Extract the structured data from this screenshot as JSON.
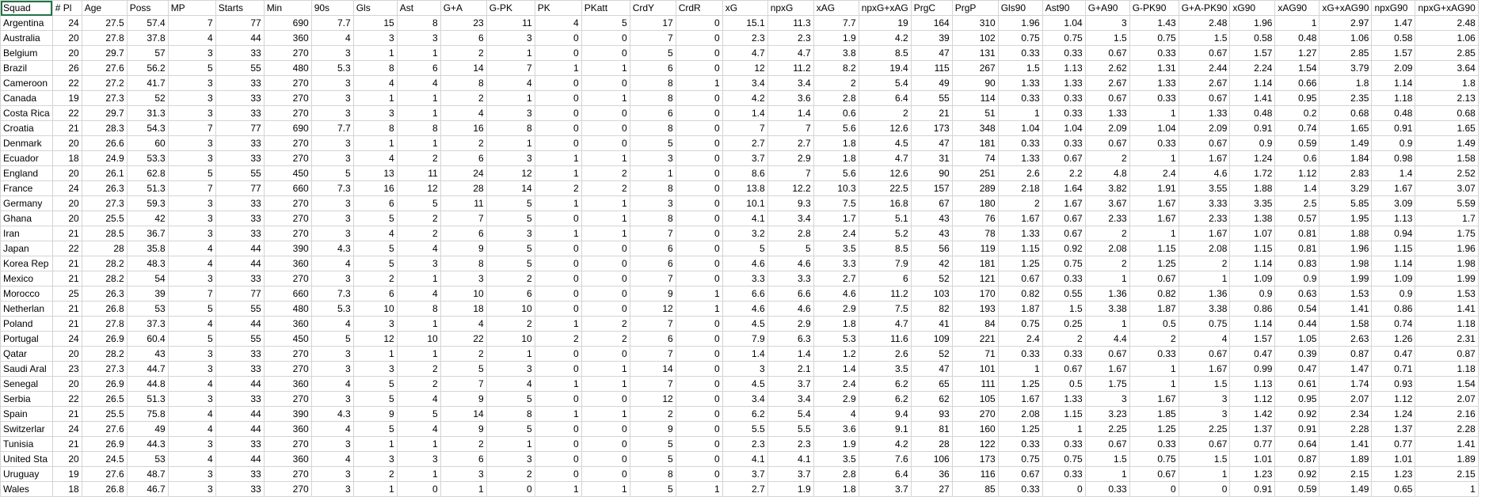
{
  "sheet": {
    "headers": [
      "Squad",
      "# Pl",
      "Age",
      "Poss",
      "MP",
      "Starts",
      "Min",
      "90s",
      "Gls",
      "Ast",
      "G+A",
      "G-PK",
      "PK",
      "PKatt",
      "CrdY",
      "CrdR",
      "xG",
      "npxG",
      "xAG",
      "npxG+xAG",
      "PrgC",
      "PrgP",
      "Gls90",
      "Ast90",
      "G+A90",
      "G-PK90",
      "G+A-PK90",
      "xG90",
      "xAG90",
      "xG+xAG90",
      "npxG90",
      "npxG+xAG90"
    ],
    "rows": [
      [
        "Argentina",
        "24",
        "27.5",
        "57.4",
        "7",
        "77",
        "690",
        "7.7",
        "15",
        "8",
        "23",
        "11",
        "4",
        "5",
        "17",
        "0",
        "15.1",
        "11.3",
        "7.7",
        "19",
        "164",
        "310",
        "1.96",
        "1.04",
        "3",
        "1.43",
        "2.48",
        "1.96",
        "1",
        "2.97",
        "1.47",
        "2.48"
      ],
      [
        "Australia",
        "20",
        "27.8",
        "37.8",
        "4",
        "44",
        "360",
        "4",
        "3",
        "3",
        "6",
        "3",
        "0",
        "0",
        "7",
        "0",
        "2.3",
        "2.3",
        "1.9",
        "4.2",
        "39",
        "102",
        "0.75",
        "0.75",
        "1.5",
        "0.75",
        "1.5",
        "0.58",
        "0.48",
        "1.06",
        "0.58",
        "1.06"
      ],
      [
        "Belgium",
        "20",
        "29.7",
        "57",
        "3",
        "33",
        "270",
        "3",
        "1",
        "1",
        "2",
        "1",
        "0",
        "0",
        "5",
        "0",
        "4.7",
        "4.7",
        "3.8",
        "8.5",
        "47",
        "131",
        "0.33",
        "0.33",
        "0.67",
        "0.33",
        "0.67",
        "1.57",
        "1.27",
        "2.85",
        "1.57",
        "2.85"
      ],
      [
        "Brazil",
        "26",
        "27.6",
        "56.2",
        "5",
        "55",
        "480",
        "5.3",
        "8",
        "6",
        "14",
        "7",
        "1",
        "1",
        "6",
        "0",
        "12",
        "11.2",
        "8.2",
        "19.4",
        "115",
        "267",
        "1.5",
        "1.13",
        "2.62",
        "1.31",
        "2.44",
        "2.24",
        "1.54",
        "3.79",
        "2.09",
        "3.64"
      ],
      [
        "Cameroon",
        "22",
        "27.2",
        "41.7",
        "3",
        "33",
        "270",
        "3",
        "4",
        "4",
        "8",
        "4",
        "0",
        "0",
        "8",
        "1",
        "3.4",
        "3.4",
        "2",
        "5.4",
        "49",
        "90",
        "1.33",
        "1.33",
        "2.67",
        "1.33",
        "2.67",
        "1.14",
        "0.66",
        "1.8",
        "1.14",
        "1.8"
      ],
      [
        "Canada",
        "19",
        "27.3",
        "52",
        "3",
        "33",
        "270",
        "3",
        "1",
        "1",
        "2",
        "1",
        "0",
        "1",
        "8",
        "0",
        "4.2",
        "3.6",
        "2.8",
        "6.4",
        "55",
        "114",
        "0.33",
        "0.33",
        "0.67",
        "0.33",
        "0.67",
        "1.41",
        "0.95",
        "2.35",
        "1.18",
        "2.13"
      ],
      [
        "Costa Rica",
        "22",
        "29.7",
        "31.3",
        "3",
        "33",
        "270",
        "3",
        "3",
        "1",
        "4",
        "3",
        "0",
        "0",
        "6",
        "0",
        "1.4",
        "1.4",
        "0.6",
        "2",
        "21",
        "51",
        "1",
        "0.33",
        "1.33",
        "1",
        "1.33",
        "0.48",
        "0.2",
        "0.68",
        "0.48",
        "0.68"
      ],
      [
        "Croatia",
        "21",
        "28.3",
        "54.3",
        "7",
        "77",
        "690",
        "7.7",
        "8",
        "8",
        "16",
        "8",
        "0",
        "0",
        "8",
        "0",
        "7",
        "7",
        "5.6",
        "12.6",
        "173",
        "348",
        "1.04",
        "1.04",
        "2.09",
        "1.04",
        "2.09",
        "0.91",
        "0.74",
        "1.65",
        "0.91",
        "1.65"
      ],
      [
        "Denmark",
        "20",
        "26.6",
        "60",
        "3",
        "33",
        "270",
        "3",
        "1",
        "1",
        "2",
        "1",
        "0",
        "0",
        "5",
        "0",
        "2.7",
        "2.7",
        "1.8",
        "4.5",
        "47",
        "181",
        "0.33",
        "0.33",
        "0.67",
        "0.33",
        "0.67",
        "0.9",
        "0.59",
        "1.49",
        "0.9",
        "1.49"
      ],
      [
        "Ecuador",
        "18",
        "24.9",
        "53.3",
        "3",
        "33",
        "270",
        "3",
        "4",
        "2",
        "6",
        "3",
        "1",
        "1",
        "3",
        "0",
        "3.7",
        "2.9",
        "1.8",
        "4.7",
        "31",
        "74",
        "1.33",
        "0.67",
        "2",
        "1",
        "1.67",
        "1.24",
        "0.6",
        "1.84",
        "0.98",
        "1.58"
      ],
      [
        "England",
        "20",
        "26.1",
        "62.8",
        "5",
        "55",
        "450",
        "5",
        "13",
        "11",
        "24",
        "12",
        "1",
        "2",
        "1",
        "0",
        "8.6",
        "7",
        "5.6",
        "12.6",
        "90",
        "251",
        "2.6",
        "2.2",
        "4.8",
        "2.4",
        "4.6",
        "1.72",
        "1.12",
        "2.83",
        "1.4",
        "2.52"
      ],
      [
        "France",
        "24",
        "26.3",
        "51.3",
        "7",
        "77",
        "660",
        "7.3",
        "16",
        "12",
        "28",
        "14",
        "2",
        "2",
        "8",
        "0",
        "13.8",
        "12.2",
        "10.3",
        "22.5",
        "157",
        "289",
        "2.18",
        "1.64",
        "3.82",
        "1.91",
        "3.55",
        "1.88",
        "1.4",
        "3.29",
        "1.67",
        "3.07"
      ],
      [
        "Germany",
        "20",
        "27.3",
        "59.3",
        "3",
        "33",
        "270",
        "3",
        "6",
        "5",
        "11",
        "5",
        "1",
        "1",
        "3",
        "0",
        "10.1",
        "9.3",
        "7.5",
        "16.8",
        "67",
        "180",
        "2",
        "1.67",
        "3.67",
        "1.67",
        "3.33",
        "3.35",
        "2.5",
        "5.85",
        "3.09",
        "5.59"
      ],
      [
        "Ghana",
        "20",
        "25.5",
        "42",
        "3",
        "33",
        "270",
        "3",
        "5",
        "2",
        "7",
        "5",
        "0",
        "1",
        "8",
        "0",
        "4.1",
        "3.4",
        "1.7",
        "5.1",
        "43",
        "76",
        "1.67",
        "0.67",
        "2.33",
        "1.67",
        "2.33",
        "1.38",
        "0.57",
        "1.95",
        "1.13",
        "1.7"
      ],
      [
        "Iran",
        "21",
        "28.5",
        "36.7",
        "3",
        "33",
        "270",
        "3",
        "4",
        "2",
        "6",
        "3",
        "1",
        "1",
        "7",
        "0",
        "3.2",
        "2.8",
        "2.4",
        "5.2",
        "43",
        "78",
        "1.33",
        "0.67",
        "2",
        "1",
        "1.67",
        "1.07",
        "0.81",
        "1.88",
        "0.94",
        "1.75"
      ],
      [
        "Japan",
        "22",
        "28",
        "35.8",
        "4",
        "44",
        "390",
        "4.3",
        "5",
        "4",
        "9",
        "5",
        "0",
        "0",
        "6",
        "0",
        "5",
        "5",
        "3.5",
        "8.5",
        "56",
        "119",
        "1.15",
        "0.92",
        "2.08",
        "1.15",
        "2.08",
        "1.15",
        "0.81",
        "1.96",
        "1.15",
        "1.96"
      ],
      [
        "Korea Rep",
        "21",
        "28.2",
        "48.3",
        "4",
        "44",
        "360",
        "4",
        "5",
        "3",
        "8",
        "5",
        "0",
        "0",
        "6",
        "0",
        "4.6",
        "4.6",
        "3.3",
        "7.9",
        "42",
        "181",
        "1.25",
        "0.75",
        "2",
        "1.25",
        "2",
        "1.14",
        "0.83",
        "1.98",
        "1.14",
        "1.98"
      ],
      [
        "Mexico",
        "21",
        "28.2",
        "54",
        "3",
        "33",
        "270",
        "3",
        "2",
        "1",
        "3",
        "2",
        "0",
        "0",
        "7",
        "0",
        "3.3",
        "3.3",
        "2.7",
        "6",
        "52",
        "121",
        "0.67",
        "0.33",
        "1",
        "0.67",
        "1",
        "1.09",
        "0.9",
        "1.99",
        "1.09",
        "1.99"
      ],
      [
        "Morocco",
        "25",
        "26.3",
        "39",
        "7",
        "77",
        "660",
        "7.3",
        "6",
        "4",
        "10",
        "6",
        "0",
        "0",
        "9",
        "1",
        "6.6",
        "6.6",
        "4.6",
        "11.2",
        "103",
        "170",
        "0.82",
        "0.55",
        "1.36",
        "0.82",
        "1.36",
        "0.9",
        "0.63",
        "1.53",
        "0.9",
        "1.53"
      ],
      [
        "Netherlan",
        "21",
        "26.8",
        "53",
        "5",
        "55",
        "480",
        "5.3",
        "10",
        "8",
        "18",
        "10",
        "0",
        "0",
        "12",
        "1",
        "4.6",
        "4.6",
        "2.9",
        "7.5",
        "82",
        "193",
        "1.87",
        "1.5",
        "3.38",
        "1.87",
        "3.38",
        "0.86",
        "0.54",
        "1.41",
        "0.86",
        "1.41"
      ],
      [
        "Poland",
        "21",
        "27.8",
        "37.3",
        "4",
        "44",
        "360",
        "4",
        "3",
        "1",
        "4",
        "2",
        "1",
        "2",
        "7",
        "0",
        "4.5",
        "2.9",
        "1.8",
        "4.7",
        "41",
        "84",
        "0.75",
        "0.25",
        "1",
        "0.5",
        "0.75",
        "1.14",
        "0.44",
        "1.58",
        "0.74",
        "1.18"
      ],
      [
        "Portugal",
        "24",
        "26.9",
        "60.4",
        "5",
        "55",
        "450",
        "5",
        "12",
        "10",
        "22",
        "10",
        "2",
        "2",
        "6",
        "0",
        "7.9",
        "6.3",
        "5.3",
        "11.6",
        "109",
        "221",
        "2.4",
        "2",
        "4.4",
        "2",
        "4",
        "1.57",
        "1.05",
        "2.63",
        "1.26",
        "2.31"
      ],
      [
        "Qatar",
        "20",
        "28.2",
        "43",
        "3",
        "33",
        "270",
        "3",
        "1",
        "1",
        "2",
        "1",
        "0",
        "0",
        "7",
        "0",
        "1.4",
        "1.4",
        "1.2",
        "2.6",
        "52",
        "71",
        "0.33",
        "0.33",
        "0.67",
        "0.33",
        "0.67",
        "0.47",
        "0.39",
        "0.87",
        "0.47",
        "0.87"
      ],
      [
        "Saudi Aral",
        "23",
        "27.3",
        "44.7",
        "3",
        "33",
        "270",
        "3",
        "3",
        "2",
        "5",
        "3",
        "0",
        "1",
        "14",
        "0",
        "3",
        "2.1",
        "1.4",
        "3.5",
        "47",
        "101",
        "1",
        "0.67",
        "1.67",
        "1",
        "1.67",
        "0.99",
        "0.47",
        "1.47",
        "0.71",
        "1.18"
      ],
      [
        "Senegal",
        "20",
        "26.9",
        "44.8",
        "4",
        "44",
        "360",
        "4",
        "5",
        "2",
        "7",
        "4",
        "1",
        "1",
        "7",
        "0",
        "4.5",
        "3.7",
        "2.4",
        "6.2",
        "65",
        "111",
        "1.25",
        "0.5",
        "1.75",
        "1",
        "1.5",
        "1.13",
        "0.61",
        "1.74",
        "0.93",
        "1.54"
      ],
      [
        "Serbia",
        "22",
        "26.5",
        "51.3",
        "3",
        "33",
        "270",
        "3",
        "5",
        "4",
        "9",
        "5",
        "0",
        "0",
        "12",
        "0",
        "3.4",
        "3.4",
        "2.9",
        "6.2",
        "62",
        "105",
        "1.67",
        "1.33",
        "3",
        "1.67",
        "3",
        "1.12",
        "0.95",
        "2.07",
        "1.12",
        "2.07"
      ],
      [
        "Spain",
        "21",
        "25.5",
        "75.8",
        "4",
        "44",
        "390",
        "4.3",
        "9",
        "5",
        "14",
        "8",
        "1",
        "1",
        "2",
        "0",
        "6.2",
        "5.4",
        "4",
        "9.4",
        "93",
        "270",
        "2.08",
        "1.15",
        "3.23",
        "1.85",
        "3",
        "1.42",
        "0.92",
        "2.34",
        "1.24",
        "2.16"
      ],
      [
        "Switzerlar",
        "24",
        "27.6",
        "49",
        "4",
        "44",
        "360",
        "4",
        "5",
        "4",
        "9",
        "5",
        "0",
        "0",
        "9",
        "0",
        "5.5",
        "5.5",
        "3.6",
        "9.1",
        "81",
        "160",
        "1.25",
        "1",
        "2.25",
        "1.25",
        "2.25",
        "1.37",
        "0.91",
        "2.28",
        "1.37",
        "2.28"
      ],
      [
        "Tunisia",
        "21",
        "26.9",
        "44.3",
        "3",
        "33",
        "270",
        "3",
        "1",
        "1",
        "2",
        "1",
        "0",
        "0",
        "5",
        "0",
        "2.3",
        "2.3",
        "1.9",
        "4.2",
        "28",
        "122",
        "0.33",
        "0.33",
        "0.67",
        "0.33",
        "0.67",
        "0.77",
        "0.64",
        "1.41",
        "0.77",
        "1.41"
      ],
      [
        "United Sta",
        "20",
        "24.5",
        "53",
        "4",
        "44",
        "360",
        "4",
        "3",
        "3",
        "6",
        "3",
        "0",
        "0",
        "5",
        "0",
        "4.1",
        "4.1",
        "3.5",
        "7.6",
        "106",
        "173",
        "0.75",
        "0.75",
        "1.5",
        "0.75",
        "1.5",
        "1.01",
        "0.87",
        "1.89",
        "1.01",
        "1.89"
      ],
      [
        "Uruguay",
        "19",
        "27.6",
        "48.7",
        "3",
        "33",
        "270",
        "3",
        "2",
        "1",
        "3",
        "2",
        "0",
        "0",
        "8",
        "0",
        "3.7",
        "3.7",
        "2.8",
        "6.4",
        "36",
        "116",
        "0.67",
        "0.33",
        "1",
        "0.67",
        "1",
        "1.23",
        "0.92",
        "2.15",
        "1.23",
        "2.15"
      ],
      [
        "Wales",
        "18",
        "26.8",
        "46.7",
        "3",
        "33",
        "270",
        "3",
        "1",
        "0",
        "1",
        "0",
        "1",
        "1",
        "5",
        "1",
        "2.7",
        "1.9",
        "1.8",
        "3.7",
        "27",
        "85",
        "0.33",
        "0",
        "0.33",
        "0",
        "0",
        "0.91",
        "0.59",
        "1.49",
        "0.65",
        "1"
      ]
    ]
  }
}
